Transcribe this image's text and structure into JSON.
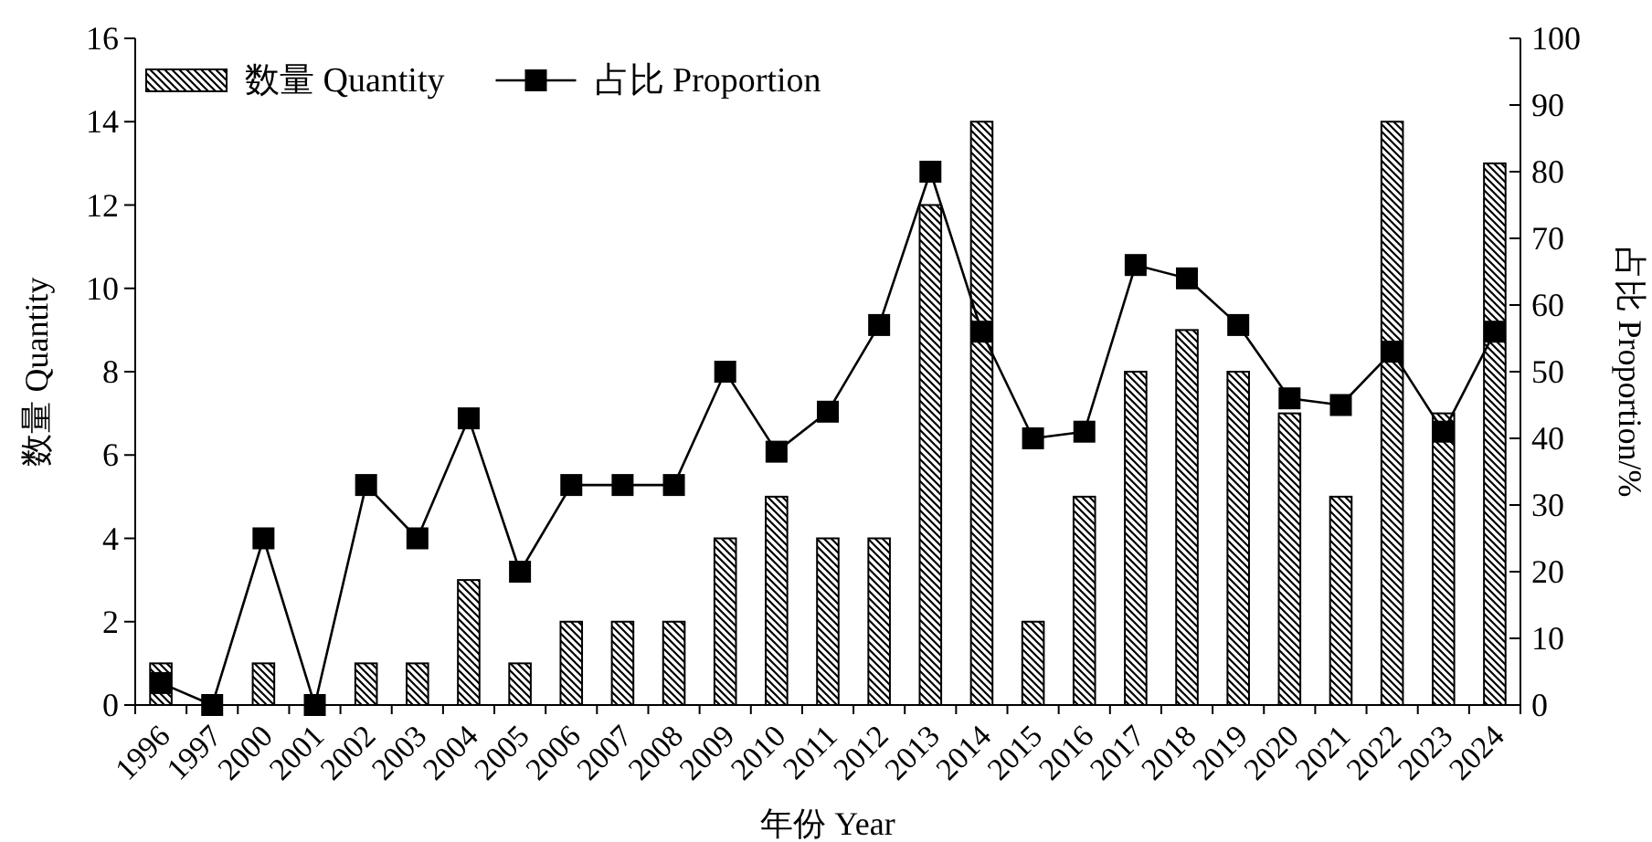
{
  "chart_data": {
    "type": "bar",
    "xlabel": "年份 Year",
    "ylabel": "数量 Quantity",
    "y2label": "占比 Proportion/%",
    "categories": [
      "1996",
      "1997",
      "2000",
      "2001",
      "2002",
      "2003",
      "2004",
      "2005",
      "2006",
      "2007",
      "2008",
      "2009",
      "2010",
      "2011",
      "2012",
      "2013",
      "2014",
      "2015",
      "2016",
      "2017",
      "2018",
      "2019",
      "2020",
      "2021",
      "2022",
      "2023",
      "2024"
    ],
    "series": [
      {
        "name": "数量 Quantity",
        "color": "#000000",
        "values": [
          1,
          0,
          1,
          0,
          1,
          1,
          3,
          1,
          2,
          2,
          2,
          4,
          5,
          4,
          4,
          12,
          14,
          2,
          5,
          8,
          9,
          8,
          7,
          5,
          14,
          7,
          13
        ]
      },
      {
        "name": "占比 Proportion",
        "type": "line",
        "axis": "y2",
        "marker": "square",
        "color": "#000000",
        "values": [
          3.3,
          0,
          25,
          0,
          33,
          25,
          43,
          20,
          33,
          33,
          33,
          50,
          38,
          44,
          57,
          80,
          56,
          40,
          41,
          66,
          64,
          57,
          46,
          45,
          53,
          41,
          56
        ]
      }
    ],
    "ylim": [
      0,
      16
    ],
    "yticks": [
      0,
      2,
      4,
      6,
      8,
      10,
      12,
      14,
      16
    ],
    "y2lim": [
      0,
      100
    ],
    "y2ticks": [
      0,
      10,
      20,
      30,
      40,
      50,
      60,
      70,
      80,
      90,
      100
    ],
    "legend": "top left",
    "grid": false
  }
}
